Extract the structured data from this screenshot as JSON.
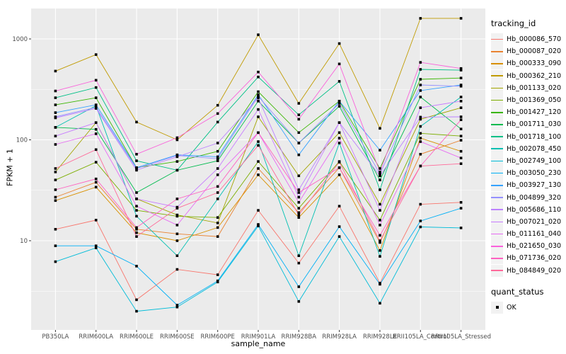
{
  "chart_data": {
    "type": "line",
    "title": "",
    "xlabel": "sample_name",
    "ylabel": "FPKM + 1",
    "y_scale": "log10",
    "y_ticks": [
      10,
      100,
      1000
    ],
    "ylim": [
      1.3,
      2000
    ],
    "grid": "on",
    "panel_color": "#EBEBEB",
    "grid_color": "#FFFFFF",
    "point_color": "#000000",
    "tick_label_color": "#4D4D4D",
    "legend": {
      "title": "tracking_id",
      "position": "right"
    },
    "quant_status": {
      "title": "quant_status",
      "items": [
        "OK"
      ]
    },
    "x_categories": [
      "PB350LA",
      "RRIM600LA",
      "RRIM600LE",
      "RRIM600SE",
      "RRIM600PE",
      "RRIM901LA",
      "RRIM928BA",
      "RRIM928LA",
      "RRIM928LE",
      "RRII105LA_Control",
      "RRII105LA_Stressed"
    ],
    "series": [
      {
        "name": "Hb_000086_570",
        "color": "#F8766D",
        "values": [
          13,
          16,
          2.6,
          5.2,
          4.6,
          20,
          6,
          22,
          3.8,
          23,
          24
        ]
      },
      {
        "name": "Hb_000087_020",
        "color": "#EA8331",
        "values": [
          27,
          38,
          13,
          11.7,
          11,
          52,
          19,
          53,
          9.6,
          72,
          99
        ]
      },
      {
        "name": "Hb_000333_090",
        "color": "#D89000",
        "values": [
          25,
          34,
          12,
          10,
          13.5,
          45,
          17,
          45,
          8,
          104,
          77
        ]
      },
      {
        "name": "Hb_000362_210",
        "color": "#C09B00",
        "values": [
          480,
          700,
          150,
          100,
          220,
          1100,
          230,
          900,
          130,
          1600,
          1600
        ]
      },
      {
        "name": "Hb_001133_020",
        "color": "#A3A500",
        "values": [
          48,
          148,
          26,
          18,
          15,
          169,
          44,
          118,
          23,
          160,
          208
        ]
      },
      {
        "name": "Hb_001369_050",
        "color": "#7CAE00",
        "values": [
          40,
          60,
          20,
          17.5,
          17,
          61,
          21,
          61,
          16,
          116,
          109
        ]
      },
      {
        "name": "Hb_001427_120",
        "color": "#39B600",
        "values": [
          222,
          261,
          53,
          61,
          77,
          300,
          118,
          242,
          52,
          398,
          410
        ]
      },
      {
        "name": "Hb_001711_030",
        "color": "#00BB4E",
        "values": [
          133,
          127,
          30,
          50,
          62,
          242,
          93,
          215,
          40,
          266,
          128
        ]
      },
      {
        "name": "Hb_001718_100",
        "color": "#00C087",
        "values": [
          261,
          330,
          62,
          50,
          150,
          420,
          177,
          380,
          32,
          499,
          490
        ]
      },
      {
        "name": "Hb_002078_450",
        "color": "#00C0B2",
        "values": [
          133,
          218,
          17.5,
          7.1,
          26,
          96,
          7.1,
          93,
          7,
          136,
          266
        ]
      },
      {
        "name": "Hb_002749_100",
        "color": "#00BCD8",
        "values": [
          6.2,
          8.5,
          2.0,
          2.2,
          3.9,
          14,
          2.5,
          11,
          2.4,
          13.7,
          13.4
        ]
      },
      {
        "name": "Hb_003050_230",
        "color": "#00B0F6",
        "values": [
          8.9,
          8.9,
          5.6,
          2.3,
          4.0,
          14.5,
          3.5,
          13.8,
          3.7,
          15.7,
          21
        ]
      },
      {
        "name": "Hb_003927_130",
        "color": "#35A2FF",
        "values": [
          186,
          222,
          53,
          71,
          68,
          280,
          71,
          242,
          79,
          308,
          350
        ]
      },
      {
        "name": "Hb_004899_320",
        "color": "#9590FF",
        "values": [
          169,
          210,
          52,
          70,
          65,
          270,
          93,
          230,
          46,
          350,
          340
        ]
      },
      {
        "name": "Hb_005686_110",
        "color": "#BC81FF",
        "values": [
          165,
          205,
          50,
          68,
          93,
          260,
          32,
          148,
          44,
          168,
          169
        ]
      },
      {
        "name": "Hb_007021_020",
        "color": "#C77CFF",
        "values": [
          109,
          148,
          26,
          21.5,
          52,
          200,
          27,
          148,
          20,
          208,
          242
        ]
      },
      {
        "name": "Hb_011161_040",
        "color": "#E76BF3",
        "values": [
          90,
          115,
          22,
          14.3,
          45,
          118,
          24,
          104,
          14.3,
          96,
          66
        ]
      },
      {
        "name": "Hb_021650_030",
        "color": "#FA62DB",
        "values": [
          305,
          390,
          72,
          105,
          182,
          470,
          160,
          565,
          48,
          586,
          510
        ]
      },
      {
        "name": "Hb_071736_020",
        "color": "#FF62C1",
        "values": [
          32,
          41,
          13.5,
          26,
          34.5,
          118,
          30,
          53,
          11.3,
          55,
          158
        ]
      },
      {
        "name": "Hb_084849_020",
        "color": "#FF6A9A",
        "values": [
          52,
          80,
          11,
          21,
          30,
          88,
          18,
          60,
          10,
          55,
          58
        ]
      }
    ]
  }
}
